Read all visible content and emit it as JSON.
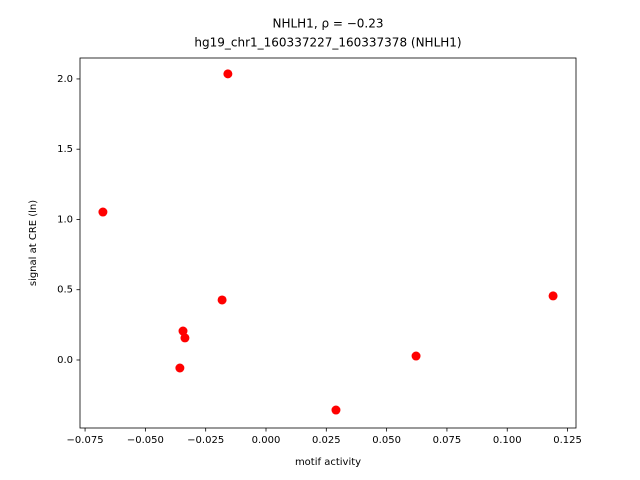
{
  "chart_data": {
    "type": "scatter",
    "title": "NHLH1, ρ = −0.23",
    "subtitle": "hg19_chr1_160337227_160337378 (NHLH1)",
    "x_label": "motif activity",
    "y_label": "signal at CRE (ln)",
    "x": [
      -0.0676,
      -0.0158,
      -0.0182,
      -0.0344,
      -0.0336,
      -0.0357,
      0.029,
      0.0622,
      0.119
    ],
    "values": [
      1.053,
      2.036,
      0.427,
      0.206,
      0.157,
      -0.057,
      -0.356,
      0.028,
      0.456
    ],
    "color": "#ff0000",
    "xlim": [
      -0.0771,
      0.1285
    ],
    "ylim": [
      -0.484,
      2.149
    ],
    "xticks": [
      {
        "value": -0.075,
        "label": "−0.075"
      },
      {
        "value": -0.05,
        "label": "−0.050"
      },
      {
        "value": -0.025,
        "label": "−0.025"
      },
      {
        "value": 0,
        "label": "0.000"
      },
      {
        "value": 0.025,
        "label": "0.025"
      },
      {
        "value": 0.05,
        "label": "0.050"
      },
      {
        "value": 0.075,
        "label": "0.075"
      },
      {
        "value": 0.1,
        "label": "0.100"
      },
      {
        "value": 0.125,
        "label": "0.125"
      }
    ],
    "yticks": [
      {
        "value": 0,
        "label": "0.0"
      },
      {
        "value": 0.5,
        "label": "0.5"
      },
      {
        "value": 1,
        "label": "1.0"
      },
      {
        "value": 1.5,
        "label": "1.5"
      },
      {
        "value": 2,
        "label": "2.0"
      }
    ],
    "grid": false
  }
}
